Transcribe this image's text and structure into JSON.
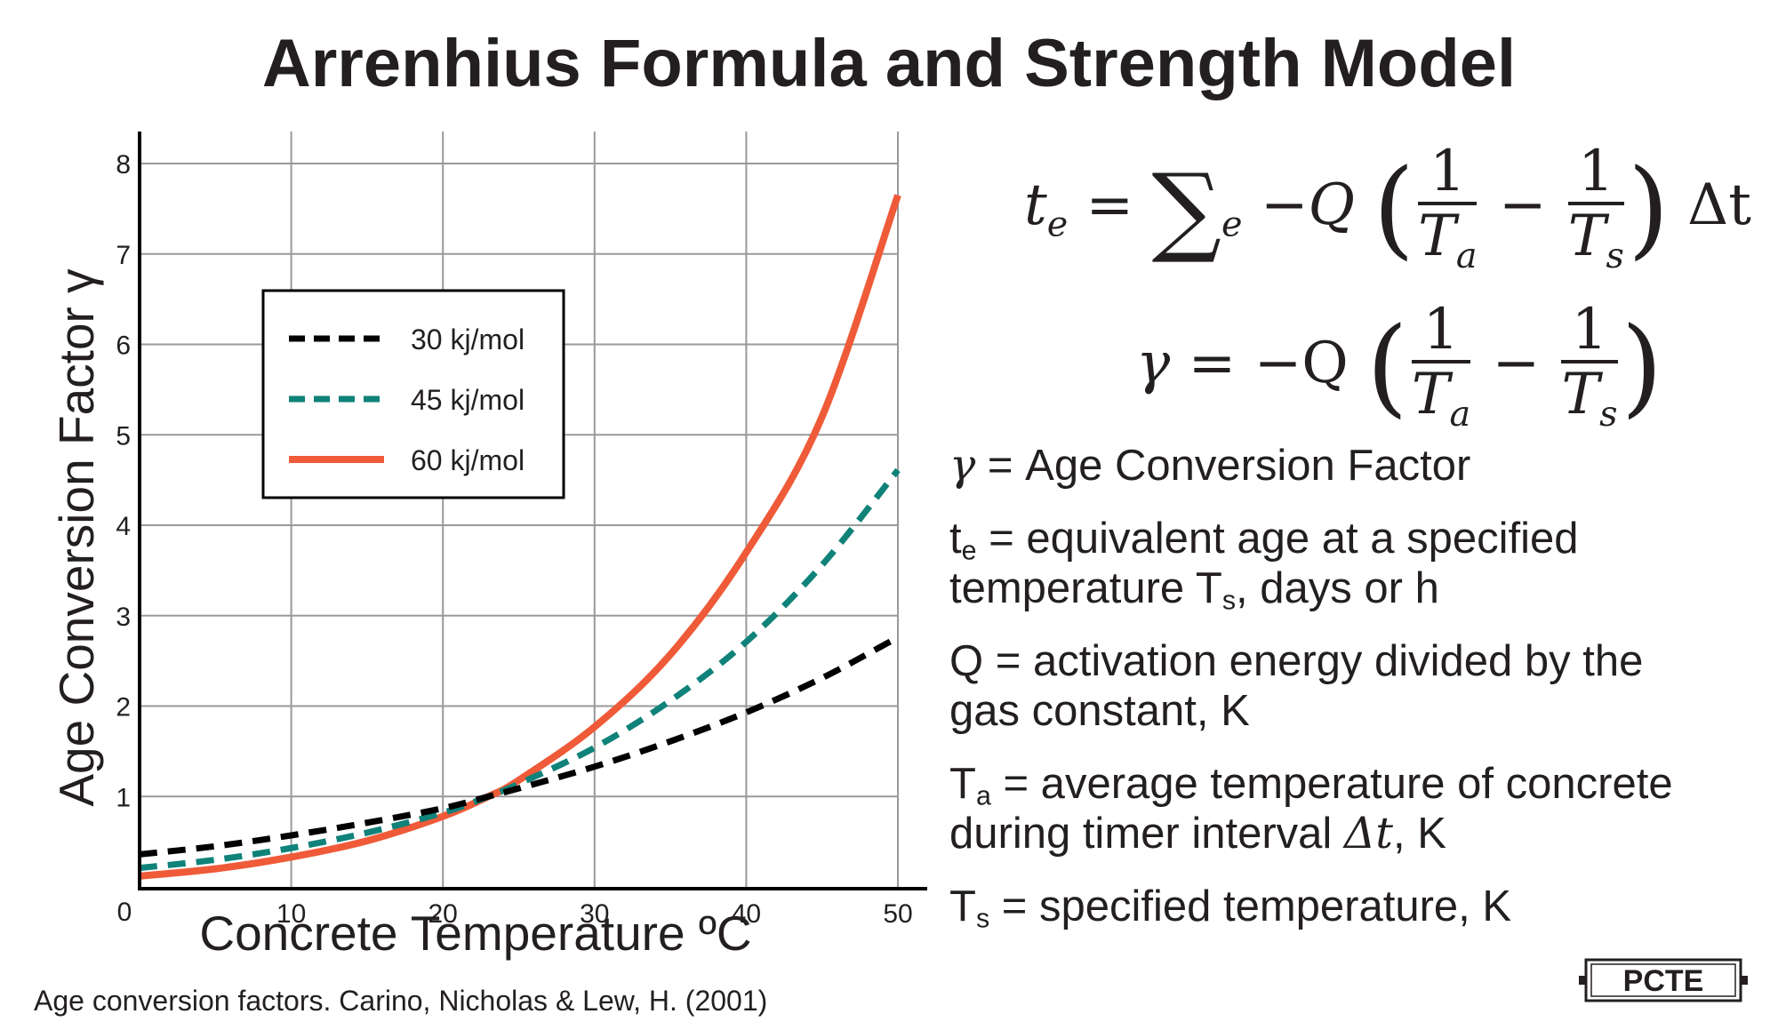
{
  "title": "Arrenhius Formula and Strength Model",
  "equations": {
    "eq1": {
      "lhs": "t",
      "lhs_sub": "e",
      "sum_sub": "e",
      "neg_q": "−Q",
      "one": "1",
      "ta": "T",
      "ta_sub": "a",
      "ts": "T",
      "ts_sub": "s",
      "minus": "−",
      "dt": "Δt"
    },
    "eq2": {
      "lhs": "γ",
      "neg_q": "= −Q",
      "one": "1",
      "ta": "T",
      "ta_sub": "a",
      "ts": "T",
      "ts_sub": "s",
      "minus": "−"
    }
  },
  "definitions": {
    "gamma": {
      "sym": "γ",
      "text": " = Age Conversion Factor"
    },
    "te": {
      "sym": "t",
      "sub": "e",
      "text1": " = equivalent age at a specified",
      "text2_pre": "temperature T",
      "text2_sub": "s",
      "text2_post": ", days or h"
    },
    "q": {
      "line1": "Q = activation energy divided by the",
      "line2": "gas constant, K"
    },
    "ta": {
      "sym": "T",
      "sub": "a",
      "text1": " = average temperature of concrete",
      "text2_pre": "during timer interval ",
      "text2_sym": "Δt",
      "text2_post": ", K"
    },
    "ts": {
      "sym": "T",
      "sub": "s",
      "text": " = specified temperature, K"
    }
  },
  "source": "Age conversion factors. Carino, Nicholas & Lew, H. (2001)",
  "logo_text": "PCTE",
  "colors": {
    "series_30": "#000000",
    "series_45": "#0f8279",
    "series_60": "#ef5a38",
    "grid": "#999999",
    "text": "#231f20"
  },
  "chart_data": {
    "type": "line",
    "title": "",
    "xlabel": "Concrete Temperature ºC",
    "ylabel": "Age Conversion Factor γ",
    "xlim": [
      0,
      52
    ],
    "ylim": [
      0,
      8.3
    ],
    "x_ticks": [
      10,
      20,
      30,
      40,
      50
    ],
    "y_ticks": [
      1,
      2,
      3,
      4,
      5,
      6,
      7,
      8
    ],
    "origin_label": "0",
    "grid": true,
    "legend_position": "upper-left",
    "series": [
      {
        "name": "30 kj/mol",
        "style": "dashed",
        "color": "#000000",
        "x": [
          0,
          5,
          10,
          15,
          20,
          23,
          25,
          30,
          35,
          40,
          45,
          50
        ],
        "y": [
          0.36,
          0.45,
          0.57,
          0.71,
          0.87,
          1.0,
          1.09,
          1.33,
          1.61,
          1.93,
          2.31,
          2.76
        ]
      },
      {
        "name": "45 kj/mol",
        "style": "dashed",
        "color": "#0f8279",
        "x": [
          0,
          5,
          10,
          15,
          20,
          23,
          25,
          30,
          35,
          40,
          45,
          50
        ],
        "y": [
          0.21,
          0.3,
          0.43,
          0.6,
          0.82,
          1.0,
          1.14,
          1.54,
          2.06,
          2.71,
          3.56,
          4.61
        ]
      },
      {
        "name": "60 kj/mol",
        "style": "solid",
        "color": "#ef5a38",
        "x": [
          0,
          5,
          10,
          15,
          20,
          23,
          25,
          30,
          35,
          40,
          45,
          50
        ],
        "y": [
          0.12,
          0.2,
          0.33,
          0.51,
          0.78,
          1.0,
          1.18,
          1.77,
          2.57,
          3.7,
          5.2,
          7.65
        ]
      }
    ]
  }
}
